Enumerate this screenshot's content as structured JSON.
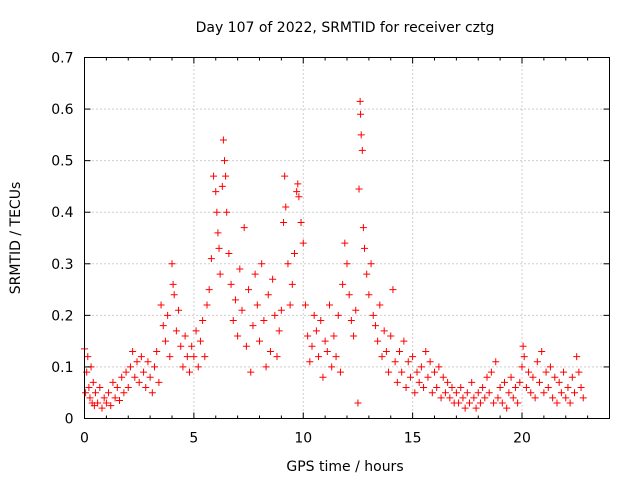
{
  "chart_data": {
    "type": "scatter",
    "title": "Day 107 of 2022, SRMTID for receiver cztg",
    "xlabel": "GPS time / hours",
    "ylabel": "SRMTID / TECUs",
    "xlim": [
      0,
      24
    ],
    "ylim": [
      0,
      0.7
    ],
    "grid": true,
    "marker": "+",
    "color": "#ff0000",
    "xticks": [
      0,
      5,
      10,
      15,
      20
    ],
    "yticks": [
      0,
      0.1,
      0.2,
      0.3,
      0.4,
      0.5,
      0.6,
      0.7
    ],
    "xtick_labels": [
      "0",
      "5",
      "10",
      "15",
      "20"
    ],
    "ytick_labels": [
      "0",
      "0.1",
      "0.2",
      "0.3",
      "0.4",
      "0.5",
      "0.6",
      "0.7"
    ],
    "series": [
      {
        "name": "SRMTID",
        "points": [
          [
            0.0,
            0.135
          ],
          [
            0.05,
            0.05
          ],
          [
            0.1,
            0.09
          ],
          [
            0.15,
            0.12
          ],
          [
            0.2,
            0.06
          ],
          [
            0.25,
            0.04
          ],
          [
            0.3,
            0.1
          ],
          [
            0.35,
            0.03
          ],
          [
            0.4,
            0.07
          ],
          [
            0.45,
            0.025
          ],
          [
            0.5,
            0.05
          ],
          [
            0.6,
            0.03
          ],
          [
            0.7,
            0.06
          ],
          [
            0.8,
            0.02
          ],
          [
            0.9,
            0.04
          ],
          [
            1.0,
            0.03
          ],
          [
            1.1,
            0.05
          ],
          [
            1.2,
            0.025
          ],
          [
            1.3,
            0.07
          ],
          [
            1.4,
            0.04
          ],
          [
            1.5,
            0.06
          ],
          [
            1.6,
            0.035
          ],
          [
            1.7,
            0.08
          ],
          [
            1.8,
            0.05
          ],
          [
            1.9,
            0.09
          ],
          [
            2.0,
            0.06
          ],
          [
            2.1,
            0.1
          ],
          [
            2.2,
            0.13
          ],
          [
            2.3,
            0.08
          ],
          [
            2.4,
            0.11
          ],
          [
            2.5,
            0.07
          ],
          [
            2.6,
            0.12
          ],
          [
            2.7,
            0.09
          ],
          [
            2.8,
            0.06
          ],
          [
            2.9,
            0.11
          ],
          [
            3.0,
            0.08
          ],
          [
            3.1,
            0.05
          ],
          [
            3.2,
            0.1
          ],
          [
            3.3,
            0.13
          ],
          [
            3.4,
            0.07
          ],
          [
            3.5,
            0.22
          ],
          [
            3.6,
            0.18
          ],
          [
            3.7,
            0.15
          ],
          [
            3.8,
            0.2
          ],
          [
            3.9,
            0.12
          ],
          [
            4.0,
            0.3
          ],
          [
            4.05,
            0.26
          ],
          [
            4.1,
            0.24
          ],
          [
            4.2,
            0.17
          ],
          [
            4.3,
            0.21
          ],
          [
            4.4,
            0.14
          ],
          [
            4.5,
            0.1
          ],
          [
            4.6,
            0.16
          ],
          [
            4.7,
            0.12
          ],
          [
            4.8,
            0.09
          ],
          [
            4.9,
            0.14
          ],
          [
            5.0,
            0.12
          ],
          [
            5.1,
            0.17
          ],
          [
            5.2,
            0.1
          ],
          [
            5.3,
            0.15
          ],
          [
            5.4,
            0.19
          ],
          [
            5.5,
            0.12
          ],
          [
            5.6,
            0.22
          ],
          [
            5.7,
            0.25
          ],
          [
            5.8,
            0.31
          ],
          [
            5.9,
            0.47
          ],
          [
            6.0,
            0.44
          ],
          [
            6.05,
            0.4
          ],
          [
            6.1,
            0.36
          ],
          [
            6.15,
            0.33
          ],
          [
            6.2,
            0.28
          ],
          [
            6.3,
            0.45
          ],
          [
            6.35,
            0.54
          ],
          [
            6.4,
            0.5
          ],
          [
            6.45,
            0.47
          ],
          [
            6.5,
            0.4
          ],
          [
            6.6,
            0.32
          ],
          [
            6.7,
            0.26
          ],
          [
            6.8,
            0.19
          ],
          [
            6.9,
            0.23
          ],
          [
            7.0,
            0.16
          ],
          [
            7.1,
            0.29
          ],
          [
            7.2,
            0.21
          ],
          [
            7.3,
            0.37
          ],
          [
            7.4,
            0.14
          ],
          [
            7.5,
            0.25
          ],
          [
            7.6,
            0.09
          ],
          [
            7.7,
            0.18
          ],
          [
            7.8,
            0.28
          ],
          [
            7.9,
            0.22
          ],
          [
            8.0,
            0.15
          ],
          [
            8.1,
            0.3
          ],
          [
            8.2,
            0.19
          ],
          [
            8.3,
            0.1
          ],
          [
            8.4,
            0.24
          ],
          [
            8.5,
            0.13
          ],
          [
            8.6,
            0.27
          ],
          [
            8.7,
            0.2
          ],
          [
            8.8,
            0.12
          ],
          [
            8.9,
            0.17
          ],
          [
            9.0,
            0.21
          ],
          [
            9.1,
            0.38
          ],
          [
            9.15,
            0.47
          ],
          [
            9.2,
            0.41
          ],
          [
            9.3,
            0.3
          ],
          [
            9.4,
            0.22
          ],
          [
            9.5,
            0.26
          ],
          [
            9.6,
            0.32
          ],
          [
            9.7,
            0.44
          ],
          [
            9.75,
            0.455
          ],
          [
            9.8,
            0.43
          ],
          [
            9.9,
            0.38
          ],
          [
            10.0,
            0.34
          ],
          [
            10.1,
            0.22
          ],
          [
            10.2,
            0.16
          ],
          [
            10.3,
            0.11
          ],
          [
            10.4,
            0.14
          ],
          [
            10.5,
            0.2
          ],
          [
            10.6,
            0.17
          ],
          [
            10.7,
            0.12
          ],
          [
            10.8,
            0.19
          ],
          [
            10.9,
            0.08
          ],
          [
            11.0,
            0.15
          ],
          [
            11.1,
            0.13
          ],
          [
            11.2,
            0.22
          ],
          [
            11.3,
            0.1
          ],
          [
            11.4,
            0.16
          ],
          [
            11.5,
            0.12
          ],
          [
            11.6,
            0.2
          ],
          [
            11.7,
            0.09
          ],
          [
            11.8,
            0.26
          ],
          [
            11.9,
            0.34
          ],
          [
            12.0,
            0.3
          ],
          [
            12.1,
            0.24
          ],
          [
            12.2,
            0.19
          ],
          [
            12.3,
            0.16
          ],
          [
            12.4,
            0.21
          ],
          [
            12.5,
            0.03
          ],
          [
            12.55,
            0.445
          ],
          [
            12.6,
            0.615
          ],
          [
            12.62,
            0.59
          ],
          [
            12.65,
            0.55
          ],
          [
            12.7,
            0.52
          ],
          [
            12.75,
            0.37
          ],
          [
            12.8,
            0.33
          ],
          [
            12.9,
            0.28
          ],
          [
            13.0,
            0.24
          ],
          [
            13.1,
            0.3
          ],
          [
            13.2,
            0.2
          ],
          [
            13.3,
            0.18
          ],
          [
            13.4,
            0.15
          ],
          [
            13.5,
            0.22
          ],
          [
            13.6,
            0.12
          ],
          [
            13.7,
            0.17
          ],
          [
            13.8,
            0.13
          ],
          [
            13.9,
            0.09
          ],
          [
            14.0,
            0.16
          ],
          [
            14.1,
            0.25
          ],
          [
            14.2,
            0.11
          ],
          [
            14.3,
            0.07
          ],
          [
            14.4,
            0.13
          ],
          [
            14.5,
            0.09
          ],
          [
            14.6,
            0.15
          ],
          [
            14.7,
            0.06
          ],
          [
            14.8,
            0.11
          ],
          [
            14.9,
            0.08
          ],
          [
            15.0,
            0.12
          ],
          [
            15.1,
            0.05
          ],
          [
            15.2,
            0.09
          ],
          [
            15.3,
            0.07
          ],
          [
            15.4,
            0.1
          ],
          [
            15.5,
            0.06
          ],
          [
            15.6,
            0.13
          ],
          [
            15.7,
            0.08
          ],
          [
            15.8,
            0.11
          ],
          [
            15.9,
            0.05
          ],
          [
            16.0,
            0.09
          ],
          [
            16.1,
            0.06
          ],
          [
            16.2,
            0.1
          ],
          [
            16.3,
            0.04
          ],
          [
            16.4,
            0.08
          ],
          [
            16.5,
            0.05
          ],
          [
            16.6,
            0.07
          ],
          [
            16.7,
            0.04
          ],
          [
            16.8,
            0.06
          ],
          [
            16.9,
            0.03
          ],
          [
            17.0,
            0.05
          ],
          [
            17.1,
            0.03
          ],
          [
            17.2,
            0.06
          ],
          [
            17.3,
            0.04
          ],
          [
            17.4,
            0.02
          ],
          [
            17.5,
            0.05
          ],
          [
            17.6,
            0.03
          ],
          [
            17.7,
            0.07
          ],
          [
            17.8,
            0.04
          ],
          [
            17.9,
            0.02
          ],
          [
            18.0,
            0.05
          ],
          [
            18.1,
            0.03
          ],
          [
            18.2,
            0.06
          ],
          [
            18.3,
            0.04
          ],
          [
            18.4,
            0.08
          ],
          [
            18.5,
            0.05
          ],
          [
            18.6,
            0.09
          ],
          [
            18.7,
            0.03
          ],
          [
            18.8,
            0.11
          ],
          [
            18.9,
            0.04
          ],
          [
            19.0,
            0.06
          ],
          [
            19.1,
            0.03
          ],
          [
            19.2,
            0.07
          ],
          [
            19.3,
            0.02
          ],
          [
            19.4,
            0.05
          ],
          [
            19.5,
            0.08
          ],
          [
            19.6,
            0.04
          ],
          [
            19.7,
            0.06
          ],
          [
            19.8,
            0.03
          ],
          [
            19.9,
            0.07
          ],
          [
            20.0,
            0.1
          ],
          [
            20.05,
            0.14
          ],
          [
            20.1,
            0.12
          ],
          [
            20.2,
            0.06
          ],
          [
            20.3,
            0.09
          ],
          [
            20.4,
            0.05
          ],
          [
            20.5,
            0.08
          ],
          [
            20.6,
            0.04
          ],
          [
            20.7,
            0.11
          ],
          [
            20.8,
            0.07
          ],
          [
            20.9,
            0.13
          ],
          [
            21.0,
            0.05
          ],
          [
            21.1,
            0.09
          ],
          [
            21.2,
            0.06
          ],
          [
            21.3,
            0.1
          ],
          [
            21.4,
            0.04
          ],
          [
            21.5,
            0.08
          ],
          [
            21.6,
            0.03
          ],
          [
            21.7,
            0.07
          ],
          [
            21.8,
            0.05
          ],
          [
            21.9,
            0.09
          ],
          [
            22.0,
            0.04
          ],
          [
            22.1,
            0.06
          ],
          [
            22.2,
            0.03
          ],
          [
            22.3,
            0.08
          ],
          [
            22.4,
            0.05
          ],
          [
            22.5,
            0.12
          ],
          [
            22.6,
            0.09
          ],
          [
            22.7,
            0.06
          ],
          [
            22.8,
            0.04
          ]
        ]
      }
    ]
  }
}
